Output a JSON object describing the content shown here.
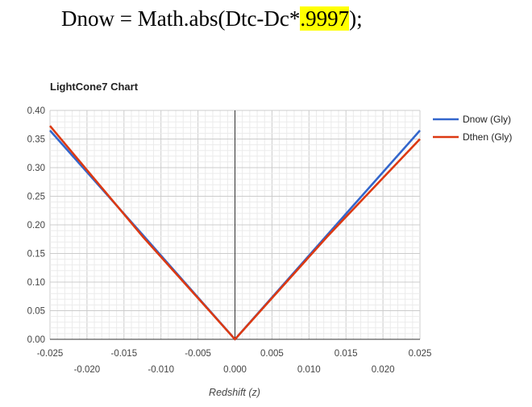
{
  "formula": {
    "prefix": "Dnow = Math.abs(Dtc-Dc*",
    "highlight": ".9997",
    "suffix": ");",
    "highlight_color": "#ffff00"
  },
  "chart_data": {
    "type": "line",
    "title": "LightCone7 Chart",
    "xlabel": "Redshift (z)",
    "ylabel": "",
    "xlim": [
      -0.025,
      0.025
    ],
    "ylim": [
      0,
      0.4
    ],
    "grid": true,
    "legend_position": "right",
    "x_ticks_upper": [
      "-0.025",
      "-0.015",
      "-0.005",
      "0.005",
      "0.015",
      "0.025"
    ],
    "x_ticks_lower": [
      "-0.020",
      "-0.010",
      "0.000",
      "0.010",
      "0.020"
    ],
    "y_ticks": [
      "0.00",
      "0.05",
      "0.10",
      "0.15",
      "0.20",
      "0.25",
      "0.30",
      "0.35",
      "0.40"
    ],
    "series": [
      {
        "name": "Dnow (Gly)",
        "color": "#3366cc",
        "x": [
          -0.025,
          -0.0125,
          0.0,
          0.0125,
          0.025
        ],
        "y": [
          0.365,
          0.183,
          0.0,
          0.183,
          0.365
        ]
      },
      {
        "name": "Dthen (Gly)",
        "color": "#dc3912",
        "x": [
          -0.025,
          -0.0125,
          0.0,
          0.0125,
          0.025
        ],
        "y": [
          0.373,
          0.18,
          0.0,
          0.18,
          0.35
        ]
      }
    ]
  }
}
